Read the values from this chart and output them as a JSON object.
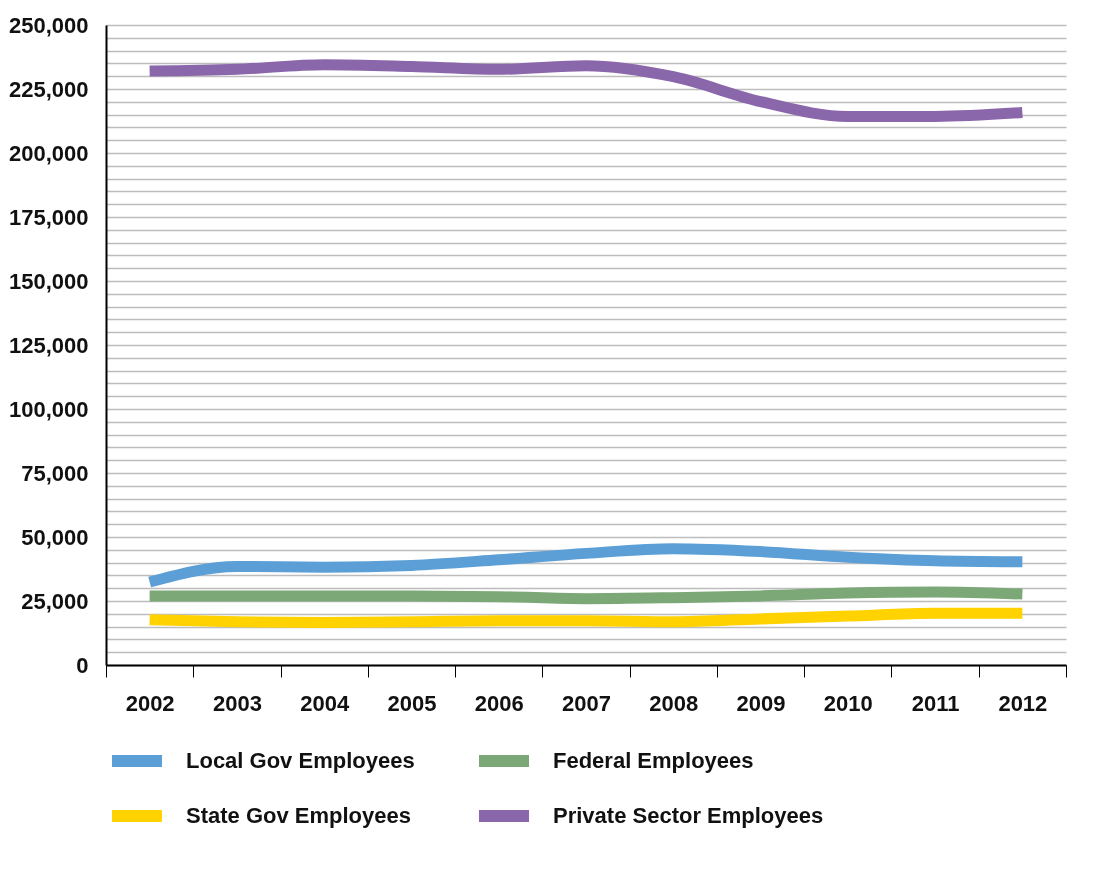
{
  "chart_data": {
    "type": "line",
    "categories": [
      "2002",
      "2003",
      "2004",
      "2005",
      "2006",
      "2007",
      "2008",
      "2009",
      "2010",
      "2011",
      "2012"
    ],
    "series": [
      {
        "name": "Local Gov Employees",
        "color": "#5b9fd6",
        "values": [
          32400,
          38500,
          38200,
          38900,
          41100,
          43600,
          45400,
          44300,
          42100,
          40700,
          40300
        ]
      },
      {
        "name": "Federal Employees",
        "color": "#7ca877",
        "values": [
          27000,
          27000,
          27000,
          27000,
          26700,
          25900,
          26300,
          27000,
          28100,
          28500,
          27700
        ]
      },
      {
        "name": "State Gov Employees",
        "color": "#ffd200",
        "values": [
          17700,
          16900,
          16600,
          16900,
          17300,
          17300,
          16900,
          18000,
          19100,
          20200,
          20200
        ]
      },
      {
        "name": "Private Sector Employees",
        "color": "#8a66ab",
        "values": [
          232000,
          232700,
          234500,
          233800,
          232700,
          234100,
          229800,
          220100,
          214300,
          214300,
          215800
        ]
      }
    ],
    "ylim": [
      0,
      250000
    ],
    "yticks": [
      0,
      {
        "value": 5000,
        "label": null
      },
      {
        "value": 10000,
        "label": null
      },
      {
        "value": 15000,
        "label": null
      },
      {
        "value": 20000,
        "label": null
      },
      {
        "value": 25000,
        "label": "25,000"
      },
      {
        "value": 30000,
        "label": null
      },
      {
        "value": 35000,
        "label": null
      },
      {
        "value": 40000,
        "label": null
      },
      {
        "value": 45000,
        "label": null
      },
      {
        "value": 50000,
        "label": "50,000"
      },
      {
        "value": 55000,
        "label": null
      },
      {
        "value": 60000,
        "label": null
      },
      {
        "value": 65000,
        "label": null
      },
      {
        "value": 70000,
        "label": null
      },
      {
        "value": 75000,
        "label": "75,000"
      },
      {
        "value": 80000,
        "label": null
      },
      {
        "value": 85000,
        "label": null
      },
      {
        "value": 90000,
        "label": null
      },
      {
        "value": 95000,
        "label": null
      },
      {
        "value": 100000,
        "label": "100,000"
      },
      {
        "value": 105000,
        "label": null
      },
      {
        "value": 110000,
        "label": null
      },
      {
        "value": 115000,
        "label": null
      },
      {
        "value": 120000,
        "label": null
      },
      {
        "value": 125000,
        "label": "125,000"
      },
      {
        "value": 130000,
        "label": null
      },
      {
        "value": 135000,
        "label": null
      },
      {
        "value": 140000,
        "label": null
      },
      {
        "value": 145000,
        "label": null
      },
      {
        "value": 150000,
        "label": "150,000"
      },
      {
        "value": 155000,
        "label": null
      },
      {
        "value": 160000,
        "label": null
      },
      {
        "value": 165000,
        "label": null
      },
      {
        "value": 170000,
        "label": null
      },
      {
        "value": 175000,
        "label": "175,000"
      },
      {
        "value": 180000,
        "label": null
      },
      {
        "value": 185000,
        "label": null
      },
      {
        "value": 190000,
        "label": null
      },
      {
        "value": 195000,
        "label": null
      },
      {
        "value": 200000,
        "label": "200,000"
      },
      {
        "value": 205000,
        "label": null
      },
      {
        "value": 210000,
        "label": null
      },
      {
        "value": 215000,
        "label": null
      },
      {
        "value": 220000,
        "label": null
      },
      {
        "value": 225000,
        "label": "225,000"
      },
      {
        "value": 230000,
        "label": null
      },
      {
        "value": 235000,
        "label": null
      },
      {
        "value": 240000,
        "label": null
      },
      {
        "value": 245000,
        "label": null
      },
      {
        "value": 250000,
        "label": "250,000"
      }
    ],
    "grid": "y",
    "legend": "bottom",
    "marker": "none",
    "line_style": "solid"
  }
}
